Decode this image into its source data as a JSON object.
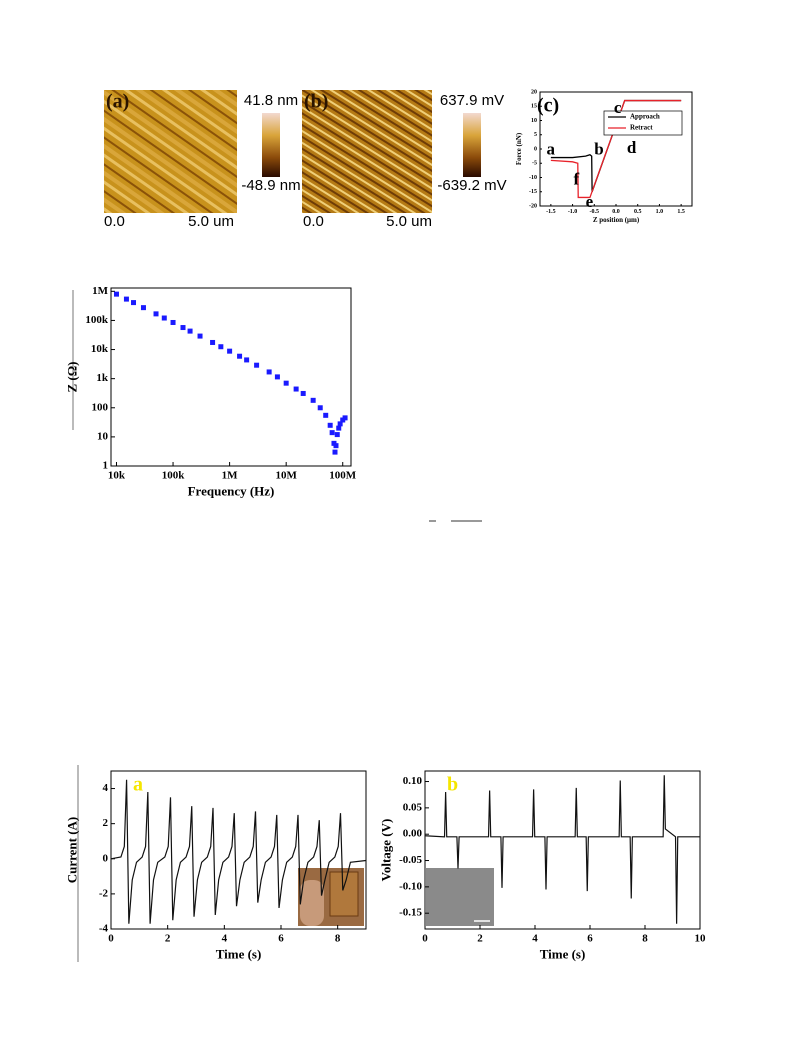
{
  "afm": [
    {
      "label": "(a)",
      "scale_max": "41.8 nm",
      "scale_min": "-48.9 nm",
      "x_start": "0.0",
      "x_end": "5.0 um"
    },
    {
      "label": "(b)",
      "scale_max": "637.9 mV",
      "scale_min": "-639.2 mV",
      "x_start": "0.0",
      "x_end": "5.0 um"
    }
  ],
  "chart_data": [
    {
      "type": "line",
      "panel_label": "(c)",
      "x_label": "Z position (μm)",
      "y_label": "Force (nN)",
      "xlim": [
        -1.75,
        1.75
      ],
      "xticks": [
        -1.5,
        {
          "value": -1,
          "label": "-1.0"
        },
        -0.5,
        {
          "value": 0,
          "label": "0.0"
        },
        0.5,
        {
          "value": 1,
          "label": "1.0"
        },
        1.5
      ],
      "ylim": [
        -20,
        20
      ],
      "yticks": [
        -20,
        -15,
        -10,
        -5,
        0,
        5,
        10,
        15,
        20
      ],
      "legend": "upper-right",
      "series": [
        {
          "name": "Approach",
          "color": "#000000",
          "x": [
            -1.5,
            -1.0,
            -0.7,
            -0.6,
            -0.56,
            -0.55,
            0.2,
            1.5
          ],
          "values": [
            -3,
            -3,
            -2.5,
            -2,
            -2.5,
            -15,
            17,
            17
          ]
        },
        {
          "name": "Retract",
          "color": "#e8222a",
          "x": [
            -1.5,
            -1.0,
            -0.88,
            -0.87,
            -0.6,
            0.2,
            1.5
          ],
          "values": [
            -4,
            -4.5,
            -5,
            -17,
            -17,
            17,
            17
          ]
        }
      ],
      "annotations": [
        "a",
        "b",
        "c",
        "d",
        "e",
        "f"
      ]
    },
    {
      "type": "scatter",
      "x_label": "Frequency (Hz)",
      "y_label": "Z (Ω)",
      "log_x": true,
      "log_y": true,
      "xlim": [
        8000,
        140000000
      ],
      "xticks": [
        {
          "value": 10000,
          "label": "10k"
        },
        {
          "value": 100000,
          "label": "100k"
        },
        {
          "value": 1000000,
          "label": "1M"
        },
        {
          "value": 10000000,
          "label": "10M"
        },
        {
          "value": 100000000,
          "label": "100M"
        }
      ],
      "ylim": [
        1,
        1300000
      ],
      "yticks": [
        1,
        10,
        100,
        {
          "value": 1000,
          "label": "1k"
        },
        {
          "value": 10000,
          "label": "10k"
        },
        {
          "value": 100000,
          "label": "100k"
        },
        {
          "value": 1000000,
          "label": "1M"
        }
      ],
      "series": [
        {
          "color": "#1a1aff",
          "x": [
            10000,
            15000,
            20000,
            30000,
            50000,
            70000,
            100000,
            150000,
            200000,
            300000,
            500000,
            700000,
            1000000,
            1500000,
            2000000,
            3000000,
            5000000,
            7000000,
            10000000,
            15000000,
            20000000,
            30000000,
            40000000,
            50000000,
            60000000,
            65000000,
            70000000,
            73000000,
            76000000,
            80000000,
            85000000,
            90000000,
            100000000,
            110000000
          ],
          "values": [
            800000,
            540000,
            410000,
            275000,
            168000,
            121000,
            85000,
            57000,
            43000,
            29000,
            17500,
            12500,
            8800,
            5900,
            4400,
            2900,
            1700,
            1150,
            700,
            440,
            310,
            180,
            100,
            55,
            25,
            14,
            6,
            3,
            5,
            12,
            20,
            28,
            38,
            45
          ]
        }
      ]
    },
    {
      "type": "line",
      "panel_label": "a",
      "label_color": "#f5e600",
      "x_label": "Time (s)",
      "y_label": "Current (A)",
      "xlim": [
        0,
        9
      ],
      "xticks": [
        0,
        2,
        4,
        6,
        8
      ],
      "ylim": [
        -4,
        5
      ],
      "yticks": [
        -4,
        -2,
        0,
        2,
        4
      ],
      "series": [
        {
          "color": "#111111",
          "x": [
            0,
            0.35,
            0.47,
            0.55,
            0.63,
            0.75,
            0.9,
            1.1,
            1.22,
            1.3,
            1.38,
            1.5,
            1.65,
            1.9,
            2.02,
            2.1,
            2.18,
            2.3,
            2.45,
            2.65,
            2.77,
            2.85,
            2.93,
            3.05,
            3.2,
            3.4,
            3.52,
            3.6,
            3.68,
            3.8,
            3.95,
            4.15,
            4.27,
            4.35,
            4.43,
            4.55,
            4.7,
            4.9,
            5.02,
            5.1,
            5.18,
            5.3,
            5.45,
            5.65,
            5.77,
            5.85,
            5.93,
            6.05,
            6.2,
            6.4,
            6.52,
            6.6,
            6.68,
            6.8,
            6.95,
            7.15,
            7.27,
            7.35,
            7.43,
            7.55,
            7.7,
            7.9,
            8.02,
            8.1,
            8.18,
            8.3,
            8.45,
            9
          ],
          "values": [
            0,
            0.1,
            0.7,
            4.5,
            -3.7,
            -1.2,
            -0.2,
            0.1,
            0.7,
            3.8,
            -3.7,
            -1.2,
            -0.2,
            0.1,
            0.7,
            3.5,
            -3.5,
            -1.2,
            -0.2,
            0.1,
            0.7,
            3.0,
            -3.3,
            -1.2,
            -0.2,
            0.1,
            0.7,
            2.9,
            -3.2,
            -1.2,
            -0.2,
            0.1,
            0.7,
            2.6,
            -2.7,
            -1.2,
            -0.2,
            0.1,
            0.7,
            2.7,
            -2.5,
            -1.2,
            -0.2,
            0.1,
            0.7,
            2.5,
            -2.8,
            -1.2,
            -0.2,
            0.1,
            0.7,
            2.5,
            -2.6,
            -1.2,
            -0.2,
            0.1,
            0.7,
            2.2,
            -2.1,
            -1.2,
            -0.2,
            0.1,
            0.7,
            2.6,
            -1.8,
            -1.2,
            -0.2,
            -0.1
          ]
        }
      ]
    },
    {
      "type": "line",
      "panel_label": "b",
      "label_color": "#f5e600",
      "x_label": "Time (s)",
      "y_label": "Voltage (V)",
      "xlim": [
        0,
        10
      ],
      "xticks": [
        0,
        2,
        4,
        6,
        8,
        10
      ],
      "ylim": [
        -0.18,
        0.12
      ],
      "yticks": [
        -0.15,
        {
          "value": -0.1,
          "label": "-0.10"
        },
        -0.05,
        {
          "value": 0,
          "label": "0.00"
        },
        0.05,
        {
          "value": 0.1,
          "label": "0.10"
        }
      ],
      "series": [
        {
          "color": "#111111",
          "x": [
            0,
            0.71,
            0.75,
            0.79,
            1.16,
            1.2,
            1.24,
            2.31,
            2.35,
            2.39,
            2.76,
            2.8,
            2.84,
            3.91,
            3.95,
            3.99,
            4.36,
            4.4,
            4.44,
            5.46,
            5.5,
            5.54,
            5.86,
            5.9,
            5.94,
            7.06,
            7.1,
            7.14,
            7.46,
            7.5,
            7.54,
            8.66,
            8.7,
            8.74,
            9.11,
            9.15,
            9.19,
            10
          ],
          "values": [
            -0.003,
            -0.005,
            0.08,
            -0.005,
            -0.005,
            -0.065,
            -0.005,
            -0.005,
            0.083,
            -0.005,
            -0.005,
            -0.102,
            -0.005,
            -0.005,
            0.085,
            -0.005,
            -0.005,
            -0.105,
            -0.005,
            -0.005,
            0.088,
            -0.005,
            -0.005,
            -0.108,
            -0.005,
            -0.005,
            0.102,
            -0.005,
            -0.005,
            -0.122,
            -0.005,
            -0.005,
            0.112,
            0.01,
            -0.005,
            -0.17,
            -0.005,
            -0.005
          ]
        }
      ]
    }
  ]
}
